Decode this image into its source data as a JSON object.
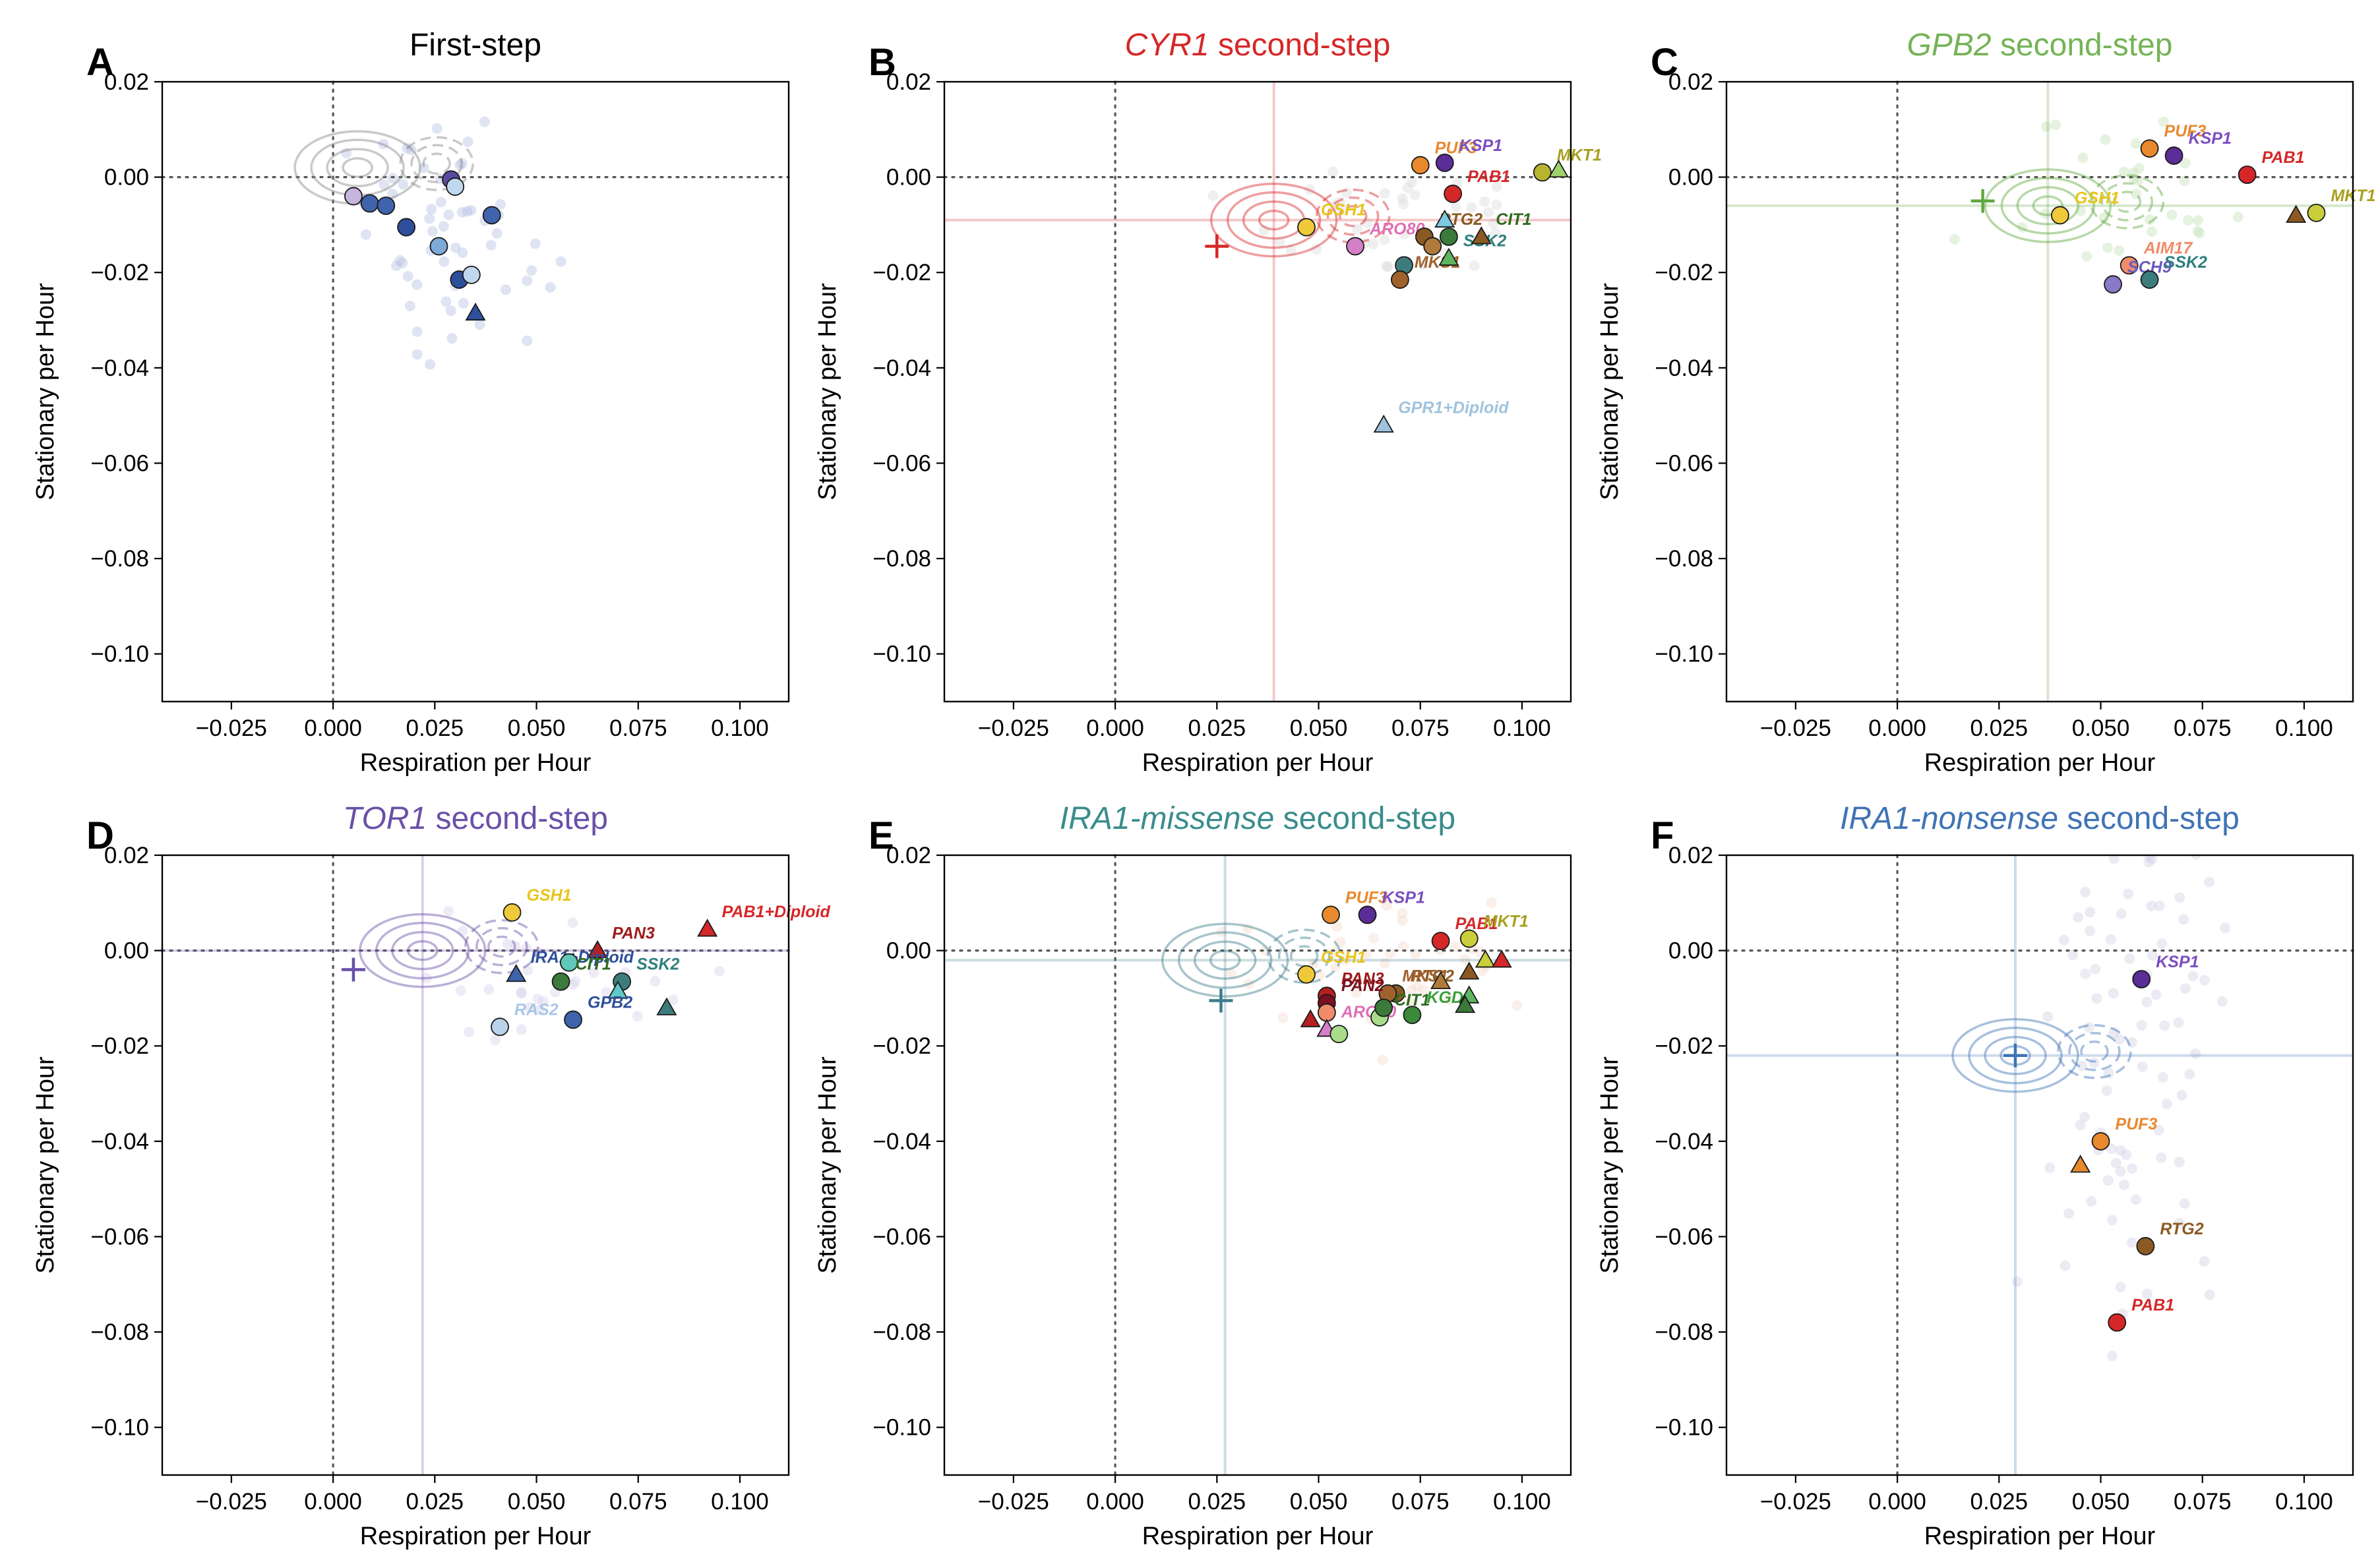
{
  "figure": {
    "xlabel": "Respiration per Hour",
    "ylabel": "Stationary per Hour",
    "xticks": [
      "−0.025",
      "0.000",
      "0.025",
      "0.050",
      "0.075",
      "0.100"
    ],
    "yticks": [
      "0.02",
      "0.00",
      "−0.02",
      "−0.04",
      "−0.06",
      "−0.08",
      "−0.10"
    ]
  },
  "chart_data": [
    {
      "panel": "A",
      "type": "scatter",
      "title_gene": "",
      "title_rest": "First-step",
      "title_color": "#000000",
      "xlim": [
        -0.042,
        0.112
      ],
      "ylim": [
        -0.11,
        0.02
      ],
      "ref_point": null,
      "ref_color": "#888888",
      "points": [
        {
          "x": 0.005,
          "y": -0.004,
          "shape": "circle",
          "color": "#c8b5dd",
          "label": ""
        },
        {
          "x": 0.009,
          "y": -0.0055,
          "shape": "circle",
          "color": "#3f63ad",
          "label": ""
        },
        {
          "x": 0.013,
          "y": -0.006,
          "shape": "circle",
          "color": "#3f63ad",
          "label": ""
        },
        {
          "x": 0.018,
          "y": -0.0105,
          "shape": "circle",
          "color": "#2d4f9c",
          "label": ""
        },
        {
          "x": 0.026,
          "y": -0.0145,
          "shape": "circle",
          "color": "#7ea9d9",
          "label": ""
        },
        {
          "x": 0.029,
          "y": -0.0005,
          "shape": "circle",
          "color": "#5a4a9f",
          "label": ""
        },
        {
          "x": 0.03,
          "y": -0.002,
          "shape": "circle",
          "color": "#bfd8ee",
          "label": ""
        },
        {
          "x": 0.031,
          "y": -0.0215,
          "shape": "circle",
          "color": "#2d4f9c",
          "label": ""
        },
        {
          "x": 0.034,
          "y": -0.0205,
          "shape": "circle",
          "color": "#bfd8ee",
          "label": ""
        },
        {
          "x": 0.039,
          "y": -0.008,
          "shape": "circle",
          "color": "#3f63ad",
          "label": ""
        },
        {
          "x": 0.035,
          "y": -0.0285,
          "shape": "triangle",
          "color": "#2d4f9c",
          "label": ""
        }
      ]
    },
    {
      "panel": "B",
      "type": "scatter",
      "title_gene": "CYR1",
      "title_rest": " second-step",
      "title_color": "#d62728",
      "xlim": [
        -0.042,
        0.112
      ],
      "ylim": [
        -0.11,
        0.02
      ],
      "ref_point": {
        "x": 0.025,
        "y": -0.0145
      },
      "ref_color": "#d62728",
      "ref_lines": {
        "x": 0.039,
        "y": -0.009
      },
      "points": [
        {
          "x": 0.047,
          "y": -0.0105,
          "shape": "circle",
          "color": "#f0c93a",
          "label": "GSH1",
          "label_color": "#e8c418"
        },
        {
          "x": 0.059,
          "y": -0.0145,
          "shape": "circle",
          "color": "#d67fc9",
          "label": "ARO80",
          "label_color": "#df6fb5"
        },
        {
          "x": 0.075,
          "y": 0.0025,
          "shape": "circle",
          "color": "#e8892e",
          "label": "PUF3",
          "label_color": "#e8892e"
        },
        {
          "x": 0.081,
          "y": 0.003,
          "shape": "circle",
          "color": "#5b2d96",
          "label": "KSP1",
          "label_color": "#7b4fbf"
        },
        {
          "x": 0.083,
          "y": -0.0035,
          "shape": "circle",
          "color": "#d62728",
          "label": "PAB1",
          "label_color": "#d62728"
        },
        {
          "x": 0.105,
          "y": 0.001,
          "shape": "circle",
          "color": "#b7b530",
          "label": "MKT1",
          "label_color": "#a8a020"
        },
        {
          "x": 0.109,
          "y": 0.0015,
          "shape": "triangle",
          "color": "#9ed26a",
          "label": ""
        },
        {
          "x": 0.076,
          "y": -0.0125,
          "shape": "circle",
          "color": "#8a5a22",
          "label": "RTG2",
          "label_color": "#8a5a22"
        },
        {
          "x": 0.078,
          "y": -0.0145,
          "shape": "circle",
          "color": "#b07a3a",
          "label": ""
        },
        {
          "x": 0.071,
          "y": -0.0185,
          "shape": "circle",
          "color": "#3c7c7c",
          "label": ""
        },
        {
          "x": 0.07,
          "y": -0.0215,
          "shape": "circle",
          "color": "#a0622d",
          "label": "MKS1",
          "label_color": "#a0622d"
        },
        {
          "x": 0.082,
          "y": -0.0125,
          "shape": "circle",
          "color": "#3a7a3a",
          "label": ""
        },
        {
          "x": 0.081,
          "y": -0.009,
          "shape": "triangle",
          "color": "#7ec8e3",
          "label": ""
        },
        {
          "x": 0.082,
          "y": -0.017,
          "shape": "triangle",
          "color": "#5fb55f",
          "label": "SSK2",
          "label_color": "#2f7f7f"
        },
        {
          "x": 0.09,
          "y": -0.0125,
          "shape": "triangle",
          "color": "#8a5a22",
          "label": "CIT1",
          "label_color": "#2e6b1f"
        },
        {
          "x": 0.066,
          "y": -0.052,
          "shape": "triangle",
          "color": "#9fc3dd",
          "label": "GPR1+Diploid",
          "label_color": "#9fc3dd"
        }
      ]
    },
    {
      "panel": "C",
      "type": "scatter",
      "title_gene": "GPB2",
      "title_rest": " second-step",
      "title_color": "#74b356",
      "xlim": [
        -0.042,
        0.112
      ],
      "ylim": [
        -0.11,
        0.02
      ],
      "ref_point": {
        "x": 0.021,
        "y": -0.005
      },
      "ref_color": "#5fa83f",
      "ref_lines": {
        "x": 0.037,
        "y": -0.006
      },
      "points": [
        {
          "x": 0.04,
          "y": -0.008,
          "shape": "circle",
          "color": "#f0c93a",
          "label": "GSH1",
          "label_color": "#e8c418"
        },
        {
          "x": 0.062,
          "y": 0.006,
          "shape": "circle",
          "color": "#e8892e",
          "label": "PUF3",
          "label_color": "#e8892e"
        },
        {
          "x": 0.068,
          "y": 0.0045,
          "shape": "circle",
          "color": "#5b2d96",
          "label": "KSP1",
          "label_color": "#7b4fbf"
        },
        {
          "x": 0.086,
          "y": 0.0005,
          "shape": "circle",
          "color": "#d62728",
          "label": "PAB1",
          "label_color": "#d62728"
        },
        {
          "x": 0.057,
          "y": -0.0185,
          "shape": "circle",
          "color": "#f08c6a",
          "label": "AIM17",
          "label_color": "#f08c6a"
        },
        {
          "x": 0.053,
          "y": -0.0225,
          "shape": "circle",
          "color": "#8a79c8",
          "label": "SCH9",
          "label_color": "#6a5abf"
        },
        {
          "x": 0.062,
          "y": -0.0215,
          "shape": "circle",
          "color": "#3c7c7c",
          "label": "SSK2",
          "label_color": "#2f7f7f"
        },
        {
          "x": 0.098,
          "y": -0.008,
          "shape": "triangle",
          "color": "#8a5a22",
          "label": ""
        },
        {
          "x": 0.103,
          "y": -0.0075,
          "shape": "circle",
          "color": "#c9cf3a",
          "label": "MKT1",
          "label_color": "#a8a020"
        }
      ]
    },
    {
      "panel": "D",
      "type": "scatter",
      "title_gene": "TOR1",
      "title_rest": " second-step",
      "title_color": "#6a50a7",
      "xlim": [
        -0.042,
        0.112
      ],
      "ylim": [
        -0.11,
        0.02
      ],
      "ref_point": {
        "x": 0.005,
        "y": -0.004
      },
      "ref_color": "#6a50a7",
      "ref_lines": {
        "x": 0.022,
        "y": 0.0
      },
      "points": [
        {
          "x": 0.044,
          "y": 0.008,
          "shape": "circle",
          "color": "#f0c93a",
          "label": "GSH1",
          "label_color": "#e8c418"
        },
        {
          "x": 0.065,
          "y": 0.0,
          "shape": "triangle",
          "color": "#b52020",
          "label": "PAN3",
          "label_color": "#9e1a1a"
        },
        {
          "x": 0.092,
          "y": 0.0045,
          "shape": "triangle",
          "color": "#d62728",
          "label": "PAB1+Diploid",
          "label_color": "#d62728"
        },
        {
          "x": 0.045,
          "y": -0.005,
          "shape": "triangle",
          "color": "#3f63ad",
          "label": "IRA1+Diploid",
          "label_color": "#2d4f9c"
        },
        {
          "x": 0.058,
          "y": -0.0025,
          "shape": "circle",
          "color": "#5fc8b8",
          "label": ""
        },
        {
          "x": 0.071,
          "y": -0.0065,
          "shape": "circle",
          "color": "#3c7c7c",
          "label": "SSK2",
          "label_color": "#2f7f7f"
        },
        {
          "x": 0.07,
          "y": -0.0085,
          "shape": "triangle",
          "color": "#5fc8c8",
          "label": ""
        },
        {
          "x": 0.056,
          "y": -0.0065,
          "shape": "circle",
          "color": "#3a7a3a",
          "label": "CIT1",
          "label_color": "#2e6b1f"
        },
        {
          "x": 0.082,
          "y": -0.012,
          "shape": "triangle",
          "color": "#3c7c7c",
          "label": ""
        },
        {
          "x": 0.041,
          "y": -0.016,
          "shape": "circle",
          "color": "#b8d3ea",
          "label": "RAS2",
          "label_color": "#a9c7e6"
        },
        {
          "x": 0.059,
          "y": -0.0145,
          "shape": "circle",
          "color": "#3f63ad",
          "label": "GPB2",
          "label_color": "#2d4f9c"
        }
      ]
    },
    {
      "panel": "E",
      "type": "scatter",
      "title_gene": "IRA1-missense",
      "title_rest": " second-step",
      "title_color": "#3a8c8c",
      "xlim": [
        -0.042,
        0.112
      ],
      "ylim": [
        -0.11,
        0.02
      ],
      "ref_point": {
        "x": 0.026,
        "y": -0.0105
      },
      "ref_color": "#3c7c8c",
      "ref_lines": {
        "x": 0.027,
        "y": -0.002
      },
      "points": [
        {
          "x": 0.053,
          "y": 0.0075,
          "shape": "circle",
          "color": "#e8892e",
          "label": "PUF3",
          "label_color": "#e8892e"
        },
        {
          "x": 0.062,
          "y": 0.0075,
          "shape": "circle",
          "color": "#5b2d96",
          "label": "KSP1",
          "label_color": "#7b4fbf"
        },
        {
          "x": 0.08,
          "y": 0.002,
          "shape": "circle",
          "color": "#d62728",
          "label": "PAB1",
          "label_color": "#d62728"
        },
        {
          "x": 0.087,
          "y": 0.0025,
          "shape": "circle",
          "color": "#c9cf3a",
          "label": "MKT1",
          "label_color": "#a8a020"
        },
        {
          "x": 0.091,
          "y": -0.002,
          "shape": "triangle",
          "color": "#c9cf3a",
          "label": ""
        },
        {
          "x": 0.095,
          "y": -0.002,
          "shape": "triangle",
          "color": "#d62728",
          "label": ""
        },
        {
          "x": 0.047,
          "y": -0.005,
          "shape": "circle",
          "color": "#f0c93a",
          "label": "GSH1",
          "label_color": "#e8c418"
        },
        {
          "x": 0.069,
          "y": -0.009,
          "shape": "circle",
          "color": "#8a5a22",
          "label": "RTG2",
          "label_color": "#8a5a22"
        },
        {
          "x": 0.067,
          "y": -0.009,
          "shape": "circle",
          "color": "#a0622d",
          "label": "MKS1",
          "label_color": "#a0622d"
        },
        {
          "x": 0.08,
          "y": -0.0065,
          "shape": "triangle",
          "color": "#b07a3a",
          "label": ""
        },
        {
          "x": 0.087,
          "y": -0.0045,
          "shape": "triangle",
          "color": "#8a5a22",
          "label": ""
        },
        {
          "x": 0.052,
          "y": -0.0095,
          "shape": "circle",
          "color": "#b52020",
          "label": "PAN3",
          "label_color": "#9e1a1a"
        },
        {
          "x": 0.052,
          "y": -0.011,
          "shape": "circle",
          "color": "#7a1020",
          "label": "PAN2",
          "label_color": "#7a1020"
        },
        {
          "x": 0.052,
          "y": -0.013,
          "shape": "circle",
          "color": "#f08c6a",
          "label": ""
        },
        {
          "x": 0.048,
          "y": -0.0145,
          "shape": "triangle",
          "color": "#b52020",
          "label": ""
        },
        {
          "x": 0.052,
          "y": -0.0165,
          "shape": "triangle",
          "color": "#d67fc9",
          "label": "ARO80",
          "label_color": "#df6fb5"
        },
        {
          "x": 0.055,
          "y": -0.0175,
          "shape": "circle",
          "color": "#a9dc8a",
          "label": ""
        },
        {
          "x": 0.065,
          "y": -0.014,
          "shape": "circle",
          "color": "#a9dc8a",
          "label": "CIT1",
          "label_color": "#2e6b1f"
        },
        {
          "x": 0.066,
          "y": -0.012,
          "shape": "circle",
          "color": "#3a7a3a",
          "label": ""
        },
        {
          "x": 0.073,
          "y": -0.0135,
          "shape": "circle",
          "color": "#3a8a3a",
          "label": "KGD1",
          "label_color": "#3aa03a"
        },
        {
          "x": 0.087,
          "y": -0.0095,
          "shape": "triangle",
          "color": "#5fb55f",
          "label": ""
        },
        {
          "x": 0.086,
          "y": -0.0115,
          "shape": "triangle",
          "color": "#3a7a3a",
          "label": ""
        }
      ]
    },
    {
      "panel": "F",
      "type": "scatter",
      "title_gene": "IRA1-nonsense",
      "title_rest": " second-step",
      "title_color": "#3f73b5",
      "xlim": [
        -0.042,
        0.112
      ],
      "ylim": [
        -0.11,
        0.02
      ],
      "ref_point": {
        "x": 0.029,
        "y": -0.022
      },
      "ref_color": "#3f73b5",
      "ref_lines": {
        "x": 0.029,
        "y": -0.022
      },
      "points": [
        {
          "x": 0.06,
          "y": -0.006,
          "shape": "circle",
          "color": "#5b2d96",
          "label": "KSP1",
          "label_color": "#7b4fbf"
        },
        {
          "x": 0.05,
          "y": -0.04,
          "shape": "circle",
          "color": "#e8892e",
          "label": "PUF3",
          "label_color": "#e8892e"
        },
        {
          "x": 0.045,
          "y": -0.045,
          "shape": "triangle",
          "color": "#e8892e",
          "label": ""
        },
        {
          "x": 0.061,
          "y": -0.062,
          "shape": "circle",
          "color": "#8a5a22",
          "label": "RTG2",
          "label_color": "#8a5a22"
        },
        {
          "x": 0.054,
          "y": -0.078,
          "shape": "circle",
          "color": "#d62728",
          "label": "PAB1",
          "label_color": "#d62728"
        }
      ]
    }
  ]
}
